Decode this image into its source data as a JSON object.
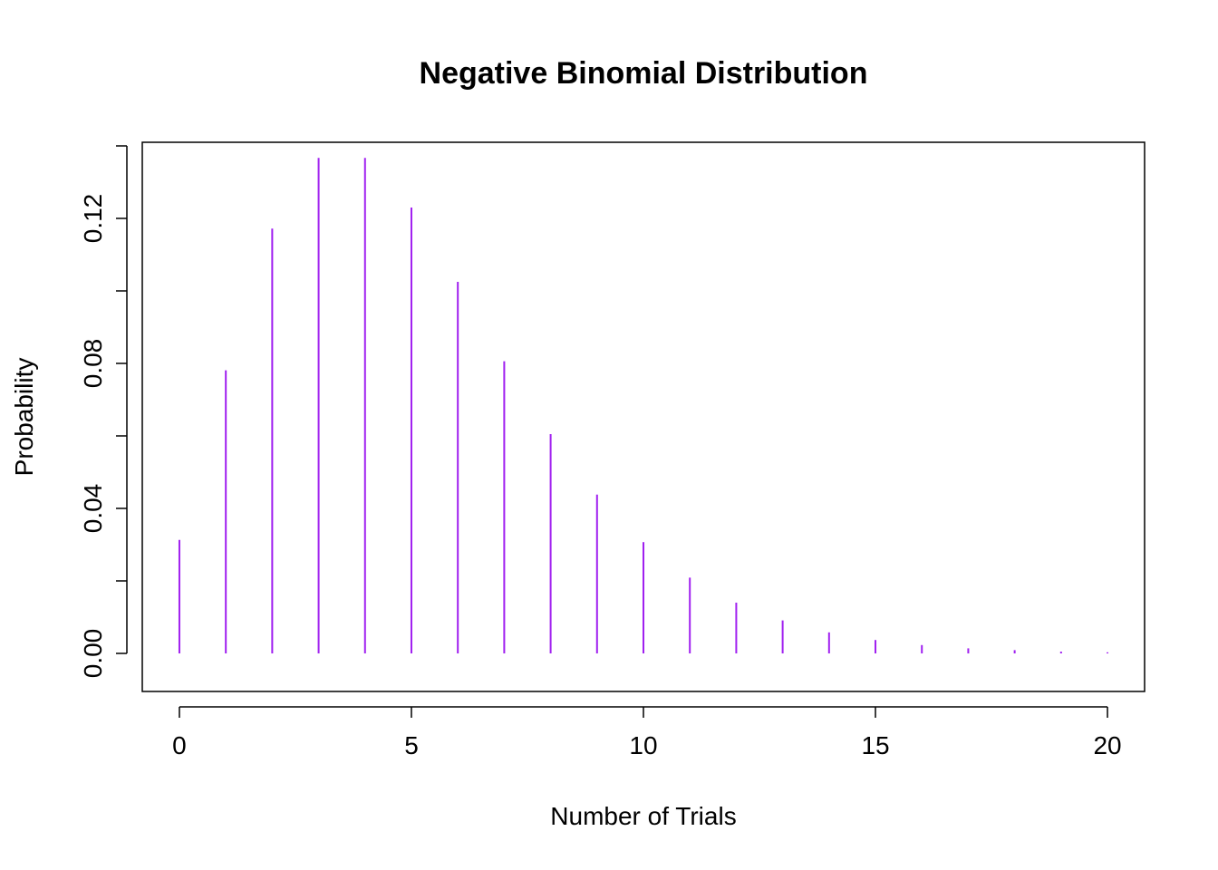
{
  "chart_data": {
    "type": "bar",
    "title": "Negative Binomial Distribution",
    "xlabel": "Number of Trials",
    "ylabel": "Probability",
    "x": [
      0,
      1,
      2,
      3,
      4,
      5,
      6,
      7,
      8,
      9,
      10,
      11,
      12,
      13,
      14,
      15,
      16,
      17,
      18,
      19,
      20
    ],
    "values": [
      0.0313,
      0.0781,
      0.1172,
      0.1367,
      0.1367,
      0.123,
      0.1025,
      0.0806,
      0.0605,
      0.0438,
      0.0307,
      0.0209,
      0.014,
      0.0091,
      0.0058,
      0.0037,
      0.0023,
      0.0014,
      0.0009,
      0.0005,
      0.0003
    ],
    "xlim": [
      -0.8,
      20.8
    ],
    "ylim": [
      -0.0105,
      0.141
    ],
    "xticks": [
      0,
      5,
      10,
      15,
      20
    ],
    "xtick_labels": [
      "0",
      "5",
      "10",
      "15",
      "20"
    ],
    "yticks": [
      0.0,
      0.02,
      0.04,
      0.06,
      0.08,
      0.1,
      0.12
    ],
    "ytick_labels": [
      "0.00",
      "",
      "0.04",
      "",
      "0.08",
      "",
      "0.12"
    ],
    "grid": false,
    "bar_color": "#A020F0",
    "axis_color": "#000000"
  }
}
